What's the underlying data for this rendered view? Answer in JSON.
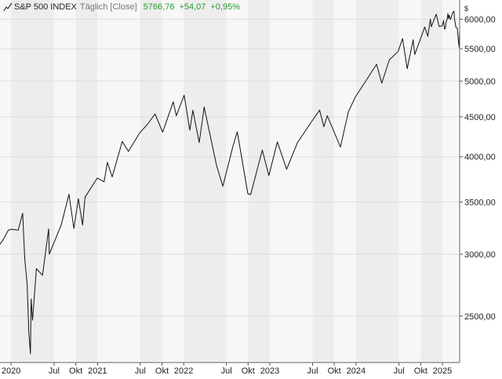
{
  "header": {
    "title": "S&P 500 INDEX",
    "frequency": "Täglich [Close]",
    "last_close": "5766,76",
    "change": "+54,07",
    "change_pct": "+0,95%"
  },
  "colors": {
    "line": "#111111",
    "positive": "#2a9a2a",
    "band_light": "#f7f7f7",
    "band_dark": "#ededed",
    "grid": "#dddddd"
  },
  "chart_data": {
    "type": "line",
    "title": "S&P 500 INDEX",
    "unit_label": "$",
    "y_scale": "log",
    "ylim": [
      2180,
      6350
    ],
    "y_ticks": [
      {
        "value": 2500,
        "label": "2500,00"
      },
      {
        "value": 3000,
        "label": "3000,00"
      },
      {
        "value": 3500,
        "label": "3500,00"
      },
      {
        "value": 4000,
        "label": "4000,00"
      },
      {
        "value": 4500,
        "label": "4500,00"
      },
      {
        "value": 5000,
        "label": "5000,00"
      },
      {
        "value": 5500,
        "label": "5500,00"
      },
      {
        "value": 6000,
        "label": "6000,00"
      }
    ],
    "xlim": [
      "2019-11-15",
      "2025-03-15"
    ],
    "x_ticks": [
      {
        "date": "2020-01-01",
        "label": "2020"
      },
      {
        "date": "2020-07-01",
        "label": "Jul"
      },
      {
        "date": "2020-10-01",
        "label": "Okt"
      },
      {
        "date": "2021-01-01",
        "label": "2021"
      },
      {
        "date": "2021-07-01",
        "label": "Jul"
      },
      {
        "date": "2021-10-01",
        "label": "Okt"
      },
      {
        "date": "2022-01-01",
        "label": "2022"
      },
      {
        "date": "2022-07-01",
        "label": "Jul"
      },
      {
        "date": "2022-10-01",
        "label": "Okt"
      },
      {
        "date": "2023-01-01",
        "label": "2023"
      },
      {
        "date": "2023-07-01",
        "label": "Jul"
      },
      {
        "date": "2023-10-01",
        "label": "Okt"
      },
      {
        "date": "2024-01-01",
        "label": "2024"
      },
      {
        "date": "2024-07-01",
        "label": "Jul"
      },
      {
        "date": "2024-10-01",
        "label": "Okt"
      },
      {
        "date": "2025-01-01",
        "label": "2025"
      }
    ],
    "grid": true,
    "series": [
      {
        "name": "S&P 500 INDEX",
        "points": [
          [
            "2019-11-15",
            3090
          ],
          [
            "2019-12-01",
            3140
          ],
          [
            "2019-12-20",
            3220
          ],
          [
            "2020-01-03",
            3230
          ],
          [
            "2020-01-31",
            3220
          ],
          [
            "2020-02-19",
            3386
          ],
          [
            "2020-02-28",
            2954
          ],
          [
            "2020-03-09",
            2746
          ],
          [
            "2020-03-16",
            2386
          ],
          [
            "2020-03-23",
            2237
          ],
          [
            "2020-03-26",
            2630
          ],
          [
            "2020-04-01",
            2470
          ],
          [
            "2020-04-17",
            2875
          ],
          [
            "2020-05-13",
            2820
          ],
          [
            "2020-06-08",
            3232
          ],
          [
            "2020-06-11",
            3002
          ],
          [
            "2020-06-30",
            3100
          ],
          [
            "2020-07-31",
            3271
          ],
          [
            "2020-09-02",
            3580
          ],
          [
            "2020-09-23",
            3237
          ],
          [
            "2020-10-12",
            3534
          ],
          [
            "2020-10-30",
            3270
          ],
          [
            "2020-11-09",
            3550
          ],
          [
            "2020-12-31",
            3756
          ],
          [
            "2021-01-29",
            3714
          ],
          [
            "2021-02-12",
            3934
          ],
          [
            "2021-03-04",
            3768
          ],
          [
            "2021-04-16",
            4185
          ],
          [
            "2021-05-12",
            4063
          ],
          [
            "2021-06-30",
            4297
          ],
          [
            "2021-07-30",
            4395
          ],
          [
            "2021-09-02",
            4537
          ],
          [
            "2021-10-04",
            4300
          ],
          [
            "2021-11-18",
            4704
          ],
          [
            "2021-12-01",
            4513
          ],
          [
            "2022-01-03",
            4796
          ],
          [
            "2022-01-27",
            4326
          ],
          [
            "2022-02-09",
            4587
          ],
          [
            "2022-03-08",
            4170
          ],
          [
            "2022-03-29",
            4631
          ],
          [
            "2022-05-20",
            3901
          ],
          [
            "2022-06-16",
            3666
          ],
          [
            "2022-07-29",
            4130
          ],
          [
            "2022-08-16",
            4305
          ],
          [
            "2022-09-30",
            3585
          ],
          [
            "2022-10-12",
            3577
          ],
          [
            "2022-11-30",
            4080
          ],
          [
            "2022-12-28",
            3783
          ],
          [
            "2023-02-02",
            4179
          ],
          [
            "2023-03-13",
            3855
          ],
          [
            "2023-04-28",
            4169
          ],
          [
            "2023-06-30",
            4450
          ],
          [
            "2023-07-31",
            4589
          ],
          [
            "2023-08-18",
            4369
          ],
          [
            "2023-09-01",
            4515
          ],
          [
            "2023-10-27",
            4117
          ],
          [
            "2023-11-30",
            4568
          ],
          [
            "2023-12-29",
            4770
          ],
          [
            "2024-02-29",
            5096
          ],
          [
            "2024-03-28",
            5254
          ],
          [
            "2024-04-19",
            4967
          ],
          [
            "2024-05-21",
            5321
          ],
          [
            "2024-06-28",
            5460
          ],
          [
            "2024-07-16",
            5667
          ],
          [
            "2024-08-05",
            5186
          ],
          [
            "2024-08-30",
            5648
          ],
          [
            "2024-09-06",
            5408
          ],
          [
            "2024-10-18",
            5864
          ],
          [
            "2024-10-31",
            5705
          ],
          [
            "2024-11-11",
            6001
          ],
          [
            "2024-11-15",
            5870
          ],
          [
            "2024-11-20",
            5917
          ],
          [
            "2024-11-27",
            5998
          ],
          [
            "2024-12-06",
            6090
          ],
          [
            "2024-12-18",
            5872
          ],
          [
            "2024-12-31",
            5882
          ],
          [
            "2025-01-06",
            5975
          ],
          [
            "2025-01-10",
            5827
          ],
          [
            "2025-01-14",
            5842
          ],
          [
            "2025-01-16",
            5937
          ],
          [
            "2025-01-21",
            5997
          ],
          [
            "2025-01-24",
            6101
          ],
          [
            "2025-01-27",
            6012
          ],
          [
            "2025-01-30",
            6071
          ],
          [
            "2025-02-03",
            5994
          ],
          [
            "2025-02-07",
            6025
          ],
          [
            "2025-02-13",
            6115
          ],
          [
            "2025-02-19",
            6144
          ],
          [
            "2025-02-21",
            6013
          ],
          [
            "2025-02-27",
            5861
          ],
          [
            "2025-03-05",
            5842
          ],
          [
            "2025-03-10",
            5615
          ],
          [
            "2025-03-13",
            5522
          ],
          [
            "2025-03-14",
            5767
          ]
        ]
      }
    ]
  }
}
